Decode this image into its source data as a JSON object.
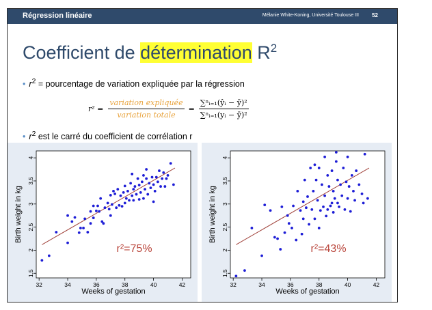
{
  "header": {
    "title": "Régression linéaire",
    "author": "Mélanie White-Koning, Université Toulouse III",
    "page_number": "52"
  },
  "heading": {
    "prefix": "Coefficient de ",
    "highlight": "détermination",
    "suffix": " R",
    "sup": "2"
  },
  "bullets": {
    "b1_var": "r",
    "b1_sup": "2",
    "b1_text": " = pourcentage de variation expliquée par la régression",
    "b2_var": "r",
    "b2_sup": "2",
    "b2_text": " est le carré du coefficient de corrélation r"
  },
  "formula": {
    "lhs": "r² =",
    "frac1_num": "variation expliquée",
    "frac1_den": "variation totale",
    "eq": "=",
    "frac2_num": "∑ⁿᵢ₌₁(ŷᵢ − ȳ)²",
    "frac2_den": "∑ⁿᵢ₌₁(yᵢ − ȳ)²"
  },
  "colors": {
    "header_bg": "#2f4a6b",
    "point": "#1d1dd6",
    "fit_line": "#a0413a",
    "annotation": "#b9453b",
    "highlight": "#ffff33",
    "fraction_text": "#e8a33d"
  },
  "chart_data": [
    {
      "type": "scatter",
      "xlabel": "Weeks of gestation",
      "ylabel": "Birth weight in kg",
      "xlim": [
        31.8,
        42.6
      ],
      "ylim": [
        1.4,
        4.15
      ],
      "xticks": [
        32,
        34,
        36,
        38,
        40,
        42
      ],
      "yticks": [
        1.5,
        2,
        2.5,
        3,
        3.5,
        4
      ],
      "annotation": "r²=75%",
      "fit": {
        "x": [
          32.2,
          41.5
        ],
        "y": [
          2.12,
          3.78
        ]
      },
      "points": [
        [
          32.2,
          1.78
        ],
        [
          32.7,
          1.88
        ],
        [
          33.2,
          2.39
        ],
        [
          34.0,
          2.16
        ],
        [
          34.3,
          2.62
        ],
        [
          34.5,
          2.71
        ],
        [
          34.0,
          2.75
        ],
        [
          34.8,
          2.38
        ],
        [
          34.9,
          2.48
        ],
        [
          35.2,
          2.68
        ],
        [
          35.1,
          2.48
        ],
        [
          35.4,
          2.39
        ],
        [
          35.6,
          2.58
        ],
        [
          35.6,
          2.84
        ],
        [
          35.8,
          2.96
        ],
        [
          36.0,
          2.85
        ],
        [
          36.2,
          2.84
        ],
        [
          36.3,
          3.12
        ],
        [
          36.4,
          2.62
        ],
        [
          36.5,
          2.58
        ],
        [
          36.6,
          2.92
        ],
        [
          36.8,
          3.02
        ],
        [
          36.9,
          2.89
        ],
        [
          37.0,
          3.19
        ],
        [
          37.1,
          2.99
        ],
        [
          37.2,
          3.28
        ],
        [
          37.3,
          3.22
        ],
        [
          37.4,
          2.92
        ],
        [
          37.5,
          3.32
        ],
        [
          37.6,
          2.97
        ],
        [
          37.7,
          3.18
        ],
        [
          37.8,
          2.95
        ],
        [
          37.9,
          3.25
        ],
        [
          38.0,
          3.02
        ],
        [
          38.0,
          3.39
        ],
        [
          38.1,
          3.12
        ],
        [
          38.2,
          3.28
        ],
        [
          38.3,
          3.08
        ],
        [
          38.4,
          3.45
        ],
        [
          38.5,
          3.18
        ],
        [
          38.6,
          3.32
        ],
        [
          38.6,
          3.08
        ],
        [
          38.7,
          3.38
        ],
        [
          38.8,
          3.21
        ],
        [
          38.9,
          3.55
        ],
        [
          39.0,
          3.1
        ],
        [
          39.0,
          3.41
        ],
        [
          39.1,
          3.25
        ],
        [
          39.2,
          3.48
        ],
        [
          39.3,
          3.12
        ],
        [
          39.3,
          3.62
        ],
        [
          39.4,
          3.32
        ],
        [
          39.5,
          3.55
        ],
        [
          39.6,
          3.21
        ],
        [
          39.7,
          3.45
        ],
        [
          39.8,
          3.35
        ],
        [
          39.9,
          3.58
        ],
        [
          40.0,
          3.05
        ],
        [
          40.0,
          3.42
        ],
        [
          40.1,
          3.28
        ],
        [
          40.2,
          3.58
        ],
        [
          40.3,
          3.48
        ],
        [
          40.4,
          3.72
        ],
        [
          40.5,
          3.38
        ],
        [
          40.6,
          3.55
        ],
        [
          40.7,
          3.68
        ],
        [
          40.8,
          3.38
        ],
        [
          41.0,
          3.62
        ],
        [
          41.2,
          3.88
        ],
        [
          40.9,
          3.55
        ],
        [
          41.4,
          3.42
        ],
        [
          38.5,
          3.65
        ],
        [
          39.5,
          3.75
        ],
        [
          37.0,
          2.75
        ],
        [
          36.1,
          2.96
        ],
        [
          35.8,
          2.7
        ]
      ]
    },
    {
      "type": "scatter",
      "xlabel": "Weeks of gestation",
      "ylabel": "Birth weight in kg",
      "xlim": [
        31.8,
        42.6
      ],
      "ylim": [
        1.4,
        4.15
      ],
      "xticks": [
        32,
        34,
        36,
        38,
        40,
        42
      ],
      "yticks": [
        1.5,
        2,
        2.5,
        3,
        3.5,
        4
      ],
      "annotation": "r²=43%",
      "fit": {
        "x": [
          32.2,
          41.5
        ],
        "y": [
          2.12,
          3.78
        ]
      },
      "points": [
        [
          32.2,
          1.44
        ],
        [
          32.8,
          1.56
        ],
        [
          33.3,
          2.48
        ],
        [
          34.0,
          1.88
        ],
        [
          34.2,
          2.98
        ],
        [
          34.6,
          2.86
        ],
        [
          34.9,
          2.28
        ],
        [
          35.1,
          2.25
        ],
        [
          35.3,
          2.02
        ],
        [
          35.4,
          2.94
        ],
        [
          35.6,
          2.38
        ],
        [
          35.9,
          2.58
        ],
        [
          36.1,
          2.48
        ],
        [
          36.2,
          2.96
        ],
        [
          36.4,
          2.22
        ],
        [
          36.5,
          3.28
        ],
        [
          36.7,
          2.86
        ],
        [
          36.9,
          3.05
        ],
        [
          36.9,
          2.68
        ],
        [
          37.0,
          3.52
        ],
        [
          37.1,
          2.92
        ],
        [
          37.2,
          3.16
        ],
        [
          37.3,
          2.56
        ],
        [
          37.4,
          3.78
        ],
        [
          37.5,
          2.88
        ],
        [
          37.6,
          3.28
        ],
        [
          37.7,
          2.68
        ],
        [
          37.8,
          3.52
        ],
        [
          37.9,
          3.08
        ],
        [
          38.0,
          2.48
        ],
        [
          38.0,
          3.78
        ],
        [
          38.1,
          2.86
        ],
        [
          38.2,
          3.42
        ],
        [
          38.3,
          2.94
        ],
        [
          38.4,
          3.18
        ],
        [
          38.5,
          2.74
        ],
        [
          38.6,
          3.62
        ],
        [
          38.6,
          2.88
        ],
        [
          38.7,
          3.38
        ],
        [
          38.8,
          2.96
        ],
        [
          38.9,
          3.72
        ],
        [
          39.0,
          2.82
        ],
        [
          39.0,
          3.28
        ],
        [
          39.1,
          3.12
        ],
        [
          39.2,
          3.92
        ],
        [
          39.3,
          3.02
        ],
        [
          39.3,
          3.52
        ],
        [
          39.4,
          2.94
        ],
        [
          39.5,
          3.42
        ],
        [
          39.6,
          3.18
        ],
        [
          39.7,
          3.78
        ],
        [
          39.8,
          2.88
        ],
        [
          39.9,
          3.48
        ],
        [
          40.0,
          3.12
        ],
        [
          40.0,
          4.02
        ],
        [
          40.1,
          3.38
        ],
        [
          40.2,
          2.84
        ],
        [
          40.3,
          3.62
        ],
        [
          40.4,
          3.28
        ],
        [
          40.5,
          3.08
        ],
        [
          40.6,
          3.72
        ],
        [
          40.8,
          3.42
        ],
        [
          41.0,
          3.22
        ],
        [
          41.1,
          3.02
        ],
        [
          41.2,
          4.08
        ],
        [
          41.4,
          3.12
        ],
        [
          39.2,
          4.12
        ],
        [
          38.4,
          4.02
        ],
        [
          36.8,
          2.35
        ],
        [
          35.8,
          2.75
        ],
        [
          37.7,
          3.85
        ],
        [
          38.9,
          3.02
        ]
      ]
    }
  ]
}
